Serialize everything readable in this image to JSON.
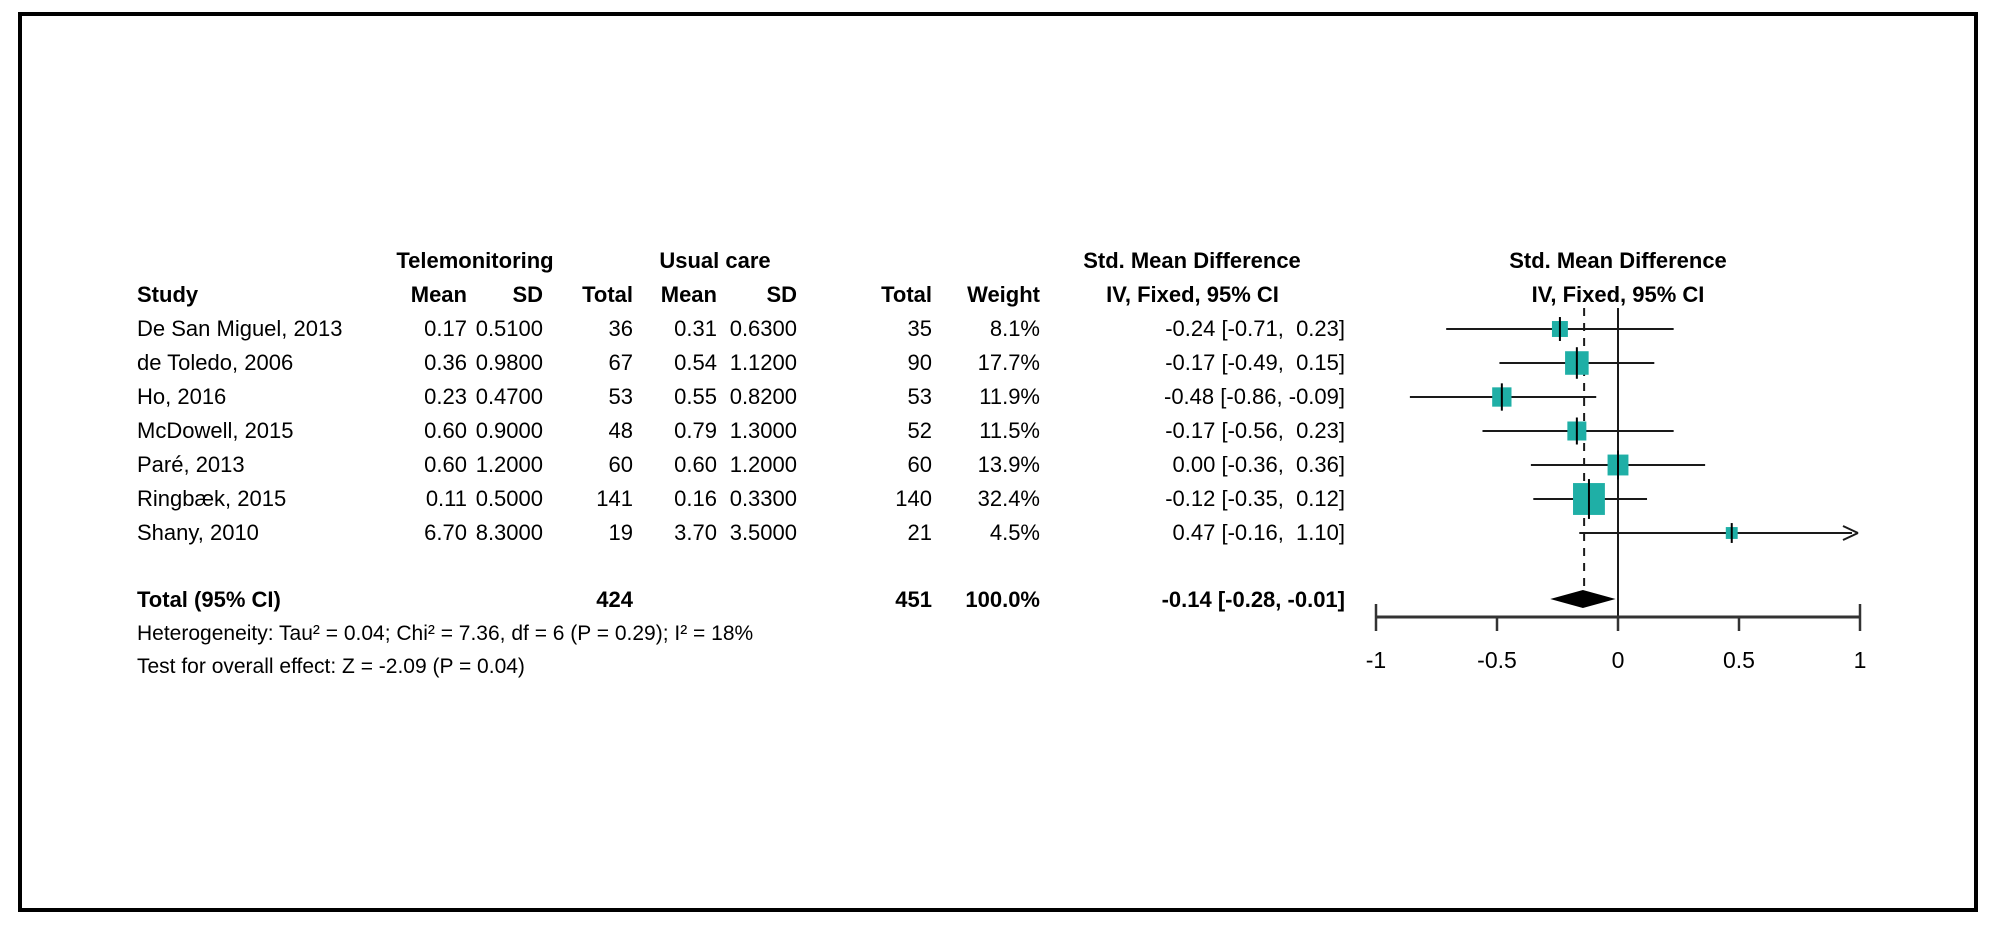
{
  "chart_data": {
    "type": "scatter",
    "subtype": "forest_plot",
    "effect_measure": "Std. Mean Difference",
    "method_label": "IV, Fixed, 95% CI",
    "headers": {
      "group_treat": "Telemonitoring",
      "group_ctrl": "Usual care",
      "effect": "Std. Mean Difference",
      "model": "IV, Fixed, 95% CI",
      "study_col": "Study",
      "mean_col": "Mean",
      "sd_col": "SD",
      "total_col": "Total",
      "weight_col": "Weight"
    },
    "studies": [
      {
        "label": "De San Miguel, 2013",
        "treat_mean": "0.17",
        "treat_sd": "0.5100",
        "treat_total": "36",
        "ctrl_mean": "0.31",
        "ctrl_sd": "0.6300",
        "ctrl_total": "35",
        "weight": "8.1%",
        "ci_text": "-0.24 [-0.71,  0.23]",
        "smd": -0.24,
        "ci_low": -0.71,
        "ci_high": 0.23,
        "weight_pct": 8.1
      },
      {
        "label": "de Toledo, 2006",
        "treat_mean": "0.36",
        "treat_sd": "0.9800",
        "treat_total": "67",
        "ctrl_mean": "0.54",
        "ctrl_sd": "1.1200",
        "ctrl_total": "90",
        "weight": "17.7%",
        "ci_text": "-0.17 [-0.49,  0.15]",
        "smd": -0.17,
        "ci_low": -0.49,
        "ci_high": 0.15,
        "weight_pct": 17.7
      },
      {
        "label": "Ho, 2016",
        "treat_mean": "0.23",
        "treat_sd": "0.4700",
        "treat_total": "53",
        "ctrl_mean": "0.55",
        "ctrl_sd": "0.8200",
        "ctrl_total": "53",
        "weight": "11.9%",
        "ci_text": "-0.48 [-0.86, -0.09]",
        "smd": -0.48,
        "ci_low": -0.86,
        "ci_high": -0.09,
        "weight_pct": 11.9
      },
      {
        "label": "McDowell, 2015",
        "treat_mean": "0.60",
        "treat_sd": "0.9000",
        "treat_total": "48",
        "ctrl_mean": "0.79",
        "ctrl_sd": "1.3000",
        "ctrl_total": "52",
        "weight": "11.5%",
        "ci_text": "-0.17 [-0.56,  0.23]",
        "smd": -0.17,
        "ci_low": -0.56,
        "ci_high": 0.23,
        "weight_pct": 11.5
      },
      {
        "label": "Paré, 2013",
        "treat_mean": "0.60",
        "treat_sd": "1.2000",
        "treat_total": "60",
        "ctrl_mean": "0.60",
        "ctrl_sd": "1.2000",
        "ctrl_total": "60",
        "weight": "13.9%",
        "ci_text": " 0.00 [-0.36,  0.36]",
        "smd": 0.0,
        "ci_low": -0.36,
        "ci_high": 0.36,
        "weight_pct": 13.9
      },
      {
        "label": "Ringbæk, 2015",
        "treat_mean": "0.11",
        "treat_sd": "0.5000",
        "treat_total": "141",
        "ctrl_mean": "0.16",
        "ctrl_sd": "0.3300",
        "ctrl_total": "140",
        "weight": "32.4%",
        "ci_text": "-0.12 [-0.35,  0.12]",
        "smd": -0.12,
        "ci_low": -0.35,
        "ci_high": 0.12,
        "weight_pct": 32.4
      },
      {
        "label": "Shany, 2010",
        "treat_mean": "6.70",
        "treat_sd": "8.3000",
        "treat_total": "19",
        "ctrl_mean": "3.70",
        "ctrl_sd": "3.5000",
        "ctrl_total": "21",
        "weight": "4.5%",
        "ci_text": " 0.47 [-0.16,  1.10]",
        "smd": 0.47,
        "ci_low": -0.16,
        "ci_high": 1.1,
        "weight_pct": 4.5
      }
    ],
    "total": {
      "label": "Total (95% CI)",
      "treat_total": "424",
      "ctrl_total": "451",
      "weight": "100.0%",
      "ci_text": "-0.14 [-0.28, -0.01]",
      "smd": -0.14,
      "ci_low": -0.28,
      "ci_high": -0.01
    },
    "heterogeneity": "Heterogeneity: Tau² = 0.04; Chi² = 7.36, df = 6 (P = 0.29); I² = 18%",
    "overall_effect_test": "Test for overall effect: Z = -2.09 (P = 0.04)",
    "axis": {
      "tick_labels": [
        "-1",
        "-0.5",
        "0",
        "0.5",
        "1"
      ],
      "tick_values": [
        -1,
        -0.5,
        0,
        0.5,
        1
      ],
      "range": [
        -1,
        1
      ]
    },
    "null_line": 0,
    "pooled_line": -0.14,
    "grid": false,
    "legend_position": "none",
    "colors": {
      "marker": "#1FAFA6",
      "diamond": "#000000",
      "line": "#1a1a1a",
      "text": "#000000"
    }
  }
}
